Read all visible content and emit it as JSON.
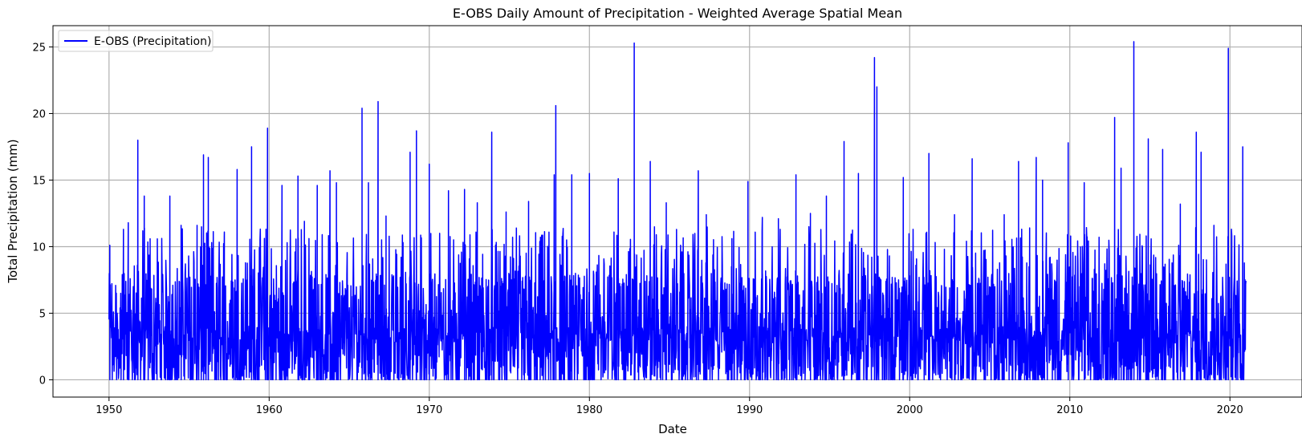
{
  "chart_data": {
    "type": "line",
    "title": "E-OBS Daily Amount of Precipitation - Weighted Average Spatial Mean",
    "xlabel": "Date",
    "ylabel": "Total Precipitation (mm)",
    "xlim": [
      1946.5,
      2024.5
    ],
    "ylim": [
      -1.3,
      26.6
    ],
    "xticks": [
      1950,
      1960,
      1970,
      1980,
      1990,
      2000,
      2010,
      2020
    ],
    "xtick_labels": [
      "1950",
      "1960",
      "1970",
      "1980",
      "1990",
      "2000",
      "2010",
      "2020"
    ],
    "yticks": [
      0,
      5,
      10,
      15,
      20,
      25
    ],
    "ytick_labels": [
      "0",
      "5",
      "10",
      "15",
      "20",
      "25"
    ],
    "grid": true,
    "legend": {
      "position": "top-left",
      "entries": [
        {
          "label": "E-OBS (Precipitation)",
          "color": "#0000ff"
        }
      ]
    },
    "series": [
      {
        "name": "E-OBS (Precipitation)",
        "color": "#0000ff",
        "x_range": [
          1950.0,
          2021.0
        ],
        "baseline": 0,
        "peaks": [
          {
            "x": 1950.05,
            "y": 10.1
          },
          {
            "x": 1950.9,
            "y": 11.3
          },
          {
            "x": 1951.2,
            "y": 11.8
          },
          {
            "x": 1951.8,
            "y": 18.0
          },
          {
            "x": 1952.2,
            "y": 13.8
          },
          {
            "x": 1953.8,
            "y": 13.8
          },
          {
            "x": 1954.5,
            "y": 11.6
          },
          {
            "x": 1955.5,
            "y": 11.6
          },
          {
            "x": 1955.9,
            "y": 16.9
          },
          {
            "x": 1956.2,
            "y": 16.7
          },
          {
            "x": 1957.2,
            "y": 11.1
          },
          {
            "x": 1958.0,
            "y": 15.8
          },
          {
            "x": 1958.9,
            "y": 17.5
          },
          {
            "x": 1959.9,
            "y": 18.9
          },
          {
            "x": 1960.8,
            "y": 14.6
          },
          {
            "x": 1961.8,
            "y": 15.3
          },
          {
            "x": 1962.2,
            "y": 11.9
          },
          {
            "x": 1963.0,
            "y": 14.6
          },
          {
            "x": 1963.8,
            "y": 15.7
          },
          {
            "x": 1964.2,
            "y": 14.8
          },
          {
            "x": 1965.8,
            "y": 20.4
          },
          {
            "x": 1966.2,
            "y": 14.8
          },
          {
            "x": 1966.8,
            "y": 20.9
          },
          {
            "x": 1967.3,
            "y": 12.3
          },
          {
            "x": 1968.8,
            "y": 17.1
          },
          {
            "x": 1969.2,
            "y": 18.7
          },
          {
            "x": 1970.0,
            "y": 16.2
          },
          {
            "x": 1971.2,
            "y": 14.2
          },
          {
            "x": 1972.2,
            "y": 14.3
          },
          {
            "x": 1973.0,
            "y": 13.3
          },
          {
            "x": 1973.9,
            "y": 18.6
          },
          {
            "x": 1974.8,
            "y": 12.6
          },
          {
            "x": 1976.2,
            "y": 13.4
          },
          {
            "x": 1977.8,
            "y": 15.4
          },
          {
            "x": 1977.9,
            "y": 20.6
          },
          {
            "x": 1978.9,
            "y": 15.4
          },
          {
            "x": 1980.0,
            "y": 15.5
          },
          {
            "x": 1981.8,
            "y": 15.1
          },
          {
            "x": 1982.8,
            "y": 25.3
          },
          {
            "x": 1983.8,
            "y": 16.4
          },
          {
            "x": 1984.8,
            "y": 13.3
          },
          {
            "x": 1986.8,
            "y": 15.7
          },
          {
            "x": 1987.3,
            "y": 12.4
          },
          {
            "x": 1988.9,
            "y": 10.6
          },
          {
            "x": 1989.9,
            "y": 14.9
          },
          {
            "x": 1990.8,
            "y": 12.2
          },
          {
            "x": 1991.8,
            "y": 12.1
          },
          {
            "x": 1992.9,
            "y": 15.4
          },
          {
            "x": 1993.8,
            "y": 12.5
          },
          {
            "x": 1994.8,
            "y": 13.8
          },
          {
            "x": 1995.9,
            "y": 17.9
          },
          {
            "x": 1996.8,
            "y": 15.5
          },
          {
            "x": 1997.8,
            "y": 24.2
          },
          {
            "x": 1997.95,
            "y": 22.0
          },
          {
            "x": 1999.6,
            "y": 15.2
          },
          {
            "x": 2001.2,
            "y": 17.0
          },
          {
            "x": 2002.8,
            "y": 12.4
          },
          {
            "x": 2003.9,
            "y": 16.6
          },
          {
            "x": 2005.9,
            "y": 12.4
          },
          {
            "x": 2006.8,
            "y": 16.4
          },
          {
            "x": 2007.9,
            "y": 16.7
          },
          {
            "x": 2008.3,
            "y": 15.0
          },
          {
            "x": 2009.9,
            "y": 17.8
          },
          {
            "x": 2010.9,
            "y": 14.8
          },
          {
            "x": 2012.8,
            "y": 19.7
          },
          {
            "x": 2013.2,
            "y": 15.9
          },
          {
            "x": 2014.0,
            "y": 25.4
          },
          {
            "x": 2014.9,
            "y": 18.1
          },
          {
            "x": 2015.8,
            "y": 17.3
          },
          {
            "x": 2016.9,
            "y": 13.2
          },
          {
            "x": 2017.9,
            "y": 18.6
          },
          {
            "x": 2018.2,
            "y": 17.1
          },
          {
            "x": 2019.0,
            "y": 11.6
          },
          {
            "x": 2019.9,
            "y": 24.9
          },
          {
            "x": 2020.8,
            "y": 17.5
          }
        ]
      }
    ]
  }
}
